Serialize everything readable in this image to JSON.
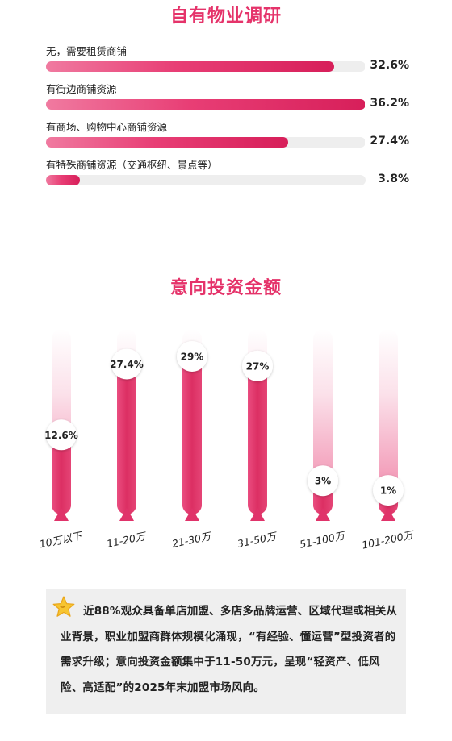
{
  "section1": {
    "title": "自有物业调研",
    "bars": [
      {
        "label": "无，需要租赁商铺",
        "value": 32.6,
        "display": "32.6%"
      },
      {
        "label": "有街边商铺资源",
        "value": 36.2,
        "display": "36.2%"
      },
      {
        "label": "有商场、购物中心商铺资源",
        "value": 27.4,
        "display": "27.4%"
      },
      {
        "label": "有特殊商铺资源（交通枢纽、景点等）",
        "value": 3.8,
        "display": "3.8%"
      }
    ]
  },
  "section2": {
    "title": "意向投资金额"
  },
  "chart_data": [
    {
      "type": "bar",
      "orientation": "horizontal",
      "title": "自有物业调研",
      "categories": [
        "无，需要租赁商铺",
        "有街边商铺资源",
        "有商场、购物中心商铺资源",
        "有特殊商铺资源（交通枢纽、景点等）"
      ],
      "values": [
        32.6,
        36.2,
        27.4,
        3.8
      ],
      "xlim": [
        0,
        36.2
      ]
    },
    {
      "type": "bar",
      "orientation": "vertical",
      "title": "意向投资金额",
      "categories": [
        "10万以下",
        "11-20万",
        "21-30万",
        "31-50万",
        "51-100万",
        "101-200万"
      ],
      "values": [
        12.6,
        27.4,
        29,
        27,
        3,
        1
      ],
      "labels": [
        "12.6%",
        "27.4%",
        "29%",
        "27%",
        "3%",
        "1%"
      ],
      "ylim": [
        0,
        29
      ]
    }
  ],
  "note": {
    "text": "近88%观众具备单店加盟、多店多品牌运营、区域代理或相关从业背景，职业加盟商群体规模化涌现，“有经验、懂运营”型投资者的需求升级；意向投资金额集中于11-50万元，呈现“轻资产、低风险、高适配”的2025年末加盟市场风向。",
    "icon": "star-icon"
  },
  "colors": {
    "accent": "#e5336a",
    "bar_dark": "#d62a5e",
    "track": "#eeeeee",
    "note_bg": "#efefef",
    "star": "#f7c531"
  }
}
